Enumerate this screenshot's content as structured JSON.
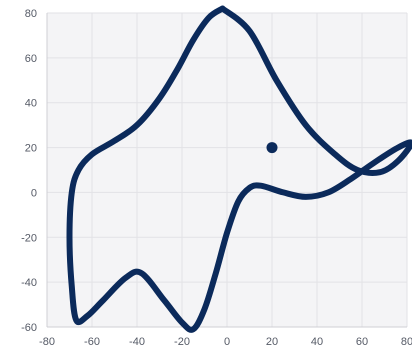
{
  "chart_data": {
    "type": "line",
    "title": "",
    "xlabel": "",
    "ylabel": "",
    "xlim": [
      -80,
      80
    ],
    "ylim": [
      -60,
      80
    ],
    "x_ticks": [
      "-80",
      "-60",
      "-40",
      "-20",
      "0",
      "20",
      "40",
      "60",
      "80"
    ],
    "y_ticks": [
      "80",
      "60",
      "40",
      "20",
      "0",
      "-20",
      "-40",
      "-60"
    ],
    "x_tick_values": [
      -80,
      -60,
      -40,
      -20,
      0,
      20,
      40,
      60,
      80
    ],
    "y_tick_values": [
      80,
      60,
      40,
      20,
      0,
      -20,
      -40,
      -60
    ],
    "grid": true,
    "colors": {
      "line": "#0b2a5b",
      "plot_bg": "#f4f4f6",
      "grid": "#e2e2e6"
    },
    "series": [
      {
        "x": [
          -2,
          10,
          22,
          35,
          48,
          58,
          68,
          76,
          82,
          76,
          65,
          55,
          45,
          35,
          25,
          15,
          10,
          5,
          0,
          -5,
          -10,
          -15,
          -20,
          -28,
          -38,
          -45,
          -55,
          -62,
          -67,
          -69,
          -70,
          -69,
          -66,
          -60,
          -50,
          -40,
          -30,
          -22,
          -15,
          -8,
          -2
        ],
        "y": [
          82,
          72,
          50,
          30,
          17,
          10,
          9,
          14,
          22,
          20,
          13,
          6,
          0,
          -2,
          0,
          3,
          2,
          -4,
          -18,
          -36,
          -52,
          -61,
          -58,
          -48,
          -36,
          -38,
          -48,
          -55,
          -57,
          -42,
          -20,
          0,
          10,
          17,
          23,
          30,
          42,
          55,
          68,
          78,
          82
        ]
      }
    ],
    "points": [
      {
        "x": 20,
        "y": 20
      }
    ]
  }
}
